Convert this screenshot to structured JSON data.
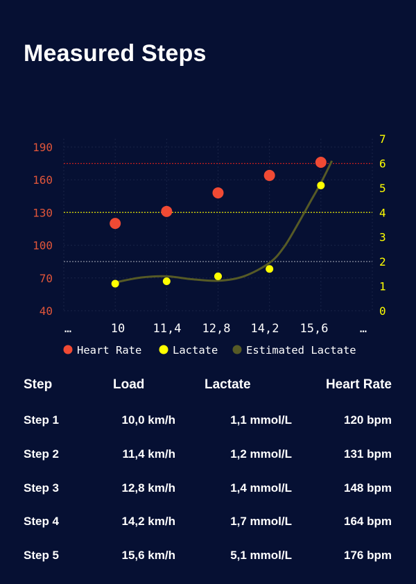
{
  "title": "Measured Steps",
  "colors": {
    "background": "#061033",
    "heart_rate": "#f04a34",
    "lactate": "#ffff00",
    "estimated_lactate": "#565a26",
    "hr_threshold_line": "#c81e1e",
    "lactate_threshold_line": "#e6e600",
    "lactate_baseline_line": "#8a8fa0",
    "left_axis_text": "#e0553a",
    "right_axis_text": "#ffff00"
  },
  "chart_data": {
    "type": "scatter",
    "x_ticks": [
      "…",
      "10",
      "11,4",
      "12,8",
      "14,2",
      "15,6",
      "…"
    ],
    "x": [
      10.0,
      11.4,
      12.8,
      14.2,
      15.6
    ],
    "xlim": [
      8.6,
      17.0
    ],
    "y_left_ticks": [
      "40",
      "70",
      "100",
      "130",
      "160",
      "190"
    ],
    "y_left_lim": [
      40,
      190
    ],
    "y_right_ticks": [
      "0",
      "1",
      "2",
      "3",
      "4",
      "5",
      "6",
      "7"
    ],
    "y_right_lim": [
      0,
      7
    ],
    "grid": true,
    "legend_position": "bottom",
    "series": [
      {
        "name": "Heart Rate",
        "axis": "left",
        "values": [
          120,
          131,
          148,
          164,
          176
        ]
      },
      {
        "name": "Lactate",
        "axis": "right",
        "values": [
          1.1,
          1.2,
          1.4,
          1.7,
          5.1
        ]
      },
      {
        "name": "Estimated Lactate",
        "axis": "right",
        "type": "line",
        "x": [
          10.0,
          10.7,
          11.4,
          12.1,
          12.8,
          13.5,
          14.2,
          14.6,
          15.0,
          15.3,
          15.6,
          15.9
        ],
        "values": [
          1.15,
          1.35,
          1.4,
          1.28,
          1.22,
          1.4,
          1.95,
          2.6,
          3.6,
          4.4,
          5.2,
          6.1
        ]
      }
    ],
    "reference_lines": [
      {
        "axis": "left",
        "value": 175
      },
      {
        "axis": "right",
        "value": 4.0
      },
      {
        "axis": "right",
        "value": 2.0
      }
    ]
  },
  "table": {
    "headers": [
      "Step",
      "Load",
      "Lactate",
      "Heart Rate"
    ],
    "rows": [
      [
        "Step 1",
        "10,0 km/h",
        "1,1 mmol/L",
        "120 bpm"
      ],
      [
        "Step 2",
        "11,4 km/h",
        "1,2 mmol/L",
        "131 bpm"
      ],
      [
        "Step 3",
        "12,8 km/h",
        "1,4 mmol/L",
        "148 bpm"
      ],
      [
        "Step 4",
        "14,2 km/h",
        "1,7 mmol/L",
        "164 bpm"
      ],
      [
        "Step 5",
        "15,6 km/h",
        "5,1 mmol/L",
        "176 bpm"
      ]
    ]
  }
}
